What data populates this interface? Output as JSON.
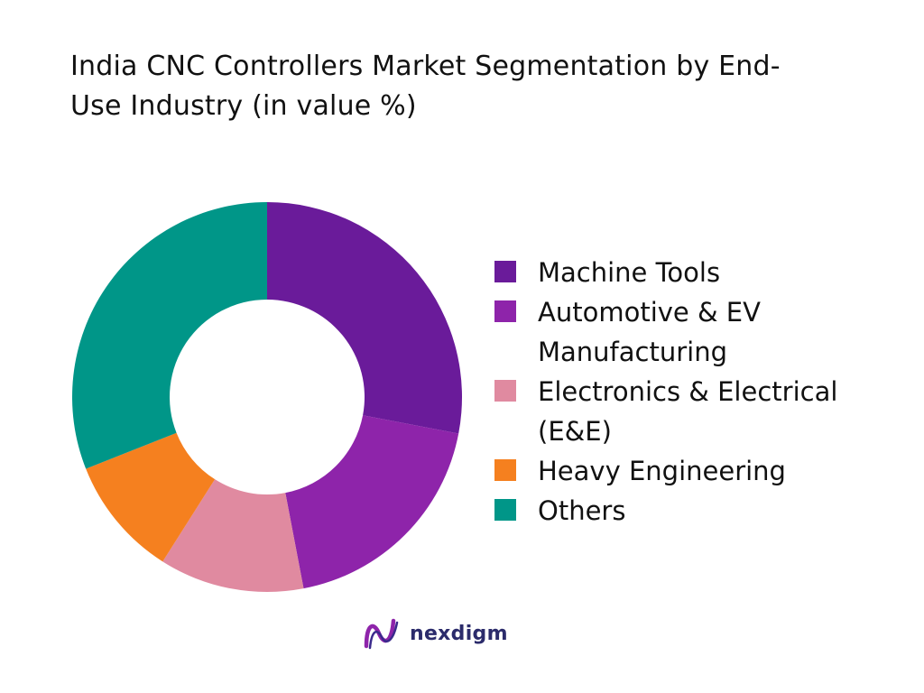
{
  "title_line1": "India CNC Controllers Market Segmentation by End-",
  "title_line2": "Use Industry (in value %)",
  "brand": "nexdigm",
  "chart_data": {
    "type": "pie",
    "donut": true,
    "title": "India CNC Controllers Market Segmentation by End-Use Industry (in value %)",
    "categories": [
      "Machine Tools",
      "Automotive & EV Manufacturing",
      "Electronics & Electrical (E&E)",
      "Heavy Engineering",
      "Others"
    ],
    "values": [
      28,
      19,
      12,
      10,
      31
    ],
    "colors": [
      "#6a1b9a",
      "#8e24aa",
      "#e08aa0",
      "#f5801f",
      "#009688"
    ],
    "legend_position": "right"
  }
}
